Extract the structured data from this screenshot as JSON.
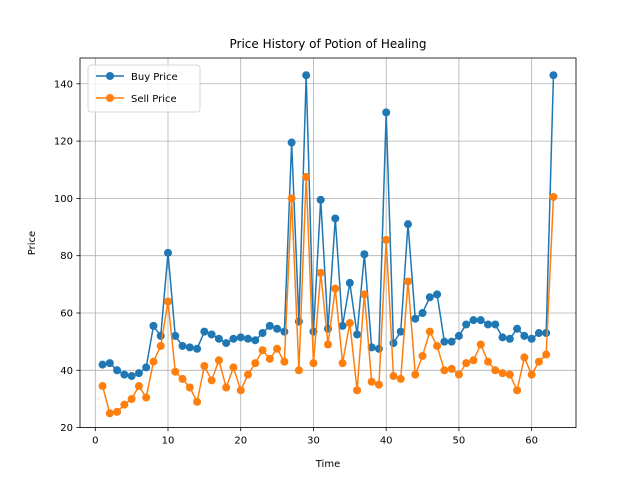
{
  "chart_data": {
    "type": "line",
    "title": "Price History of Potion of Healing",
    "xlabel": "Time",
    "ylabel": "Price",
    "xlim": [
      -2.1,
      66.1
    ],
    "ylim": [
      20,
      149
    ],
    "xticks": [
      0,
      10,
      20,
      30,
      40,
      50,
      60
    ],
    "yticks": [
      20,
      40,
      60,
      80,
      100,
      120,
      140
    ],
    "grid": true,
    "legend": "top-left",
    "x": [
      1,
      2,
      3,
      4,
      5,
      6,
      7,
      8,
      9,
      10,
      11,
      12,
      13,
      14,
      15,
      16,
      17,
      18,
      19,
      20,
      21,
      22,
      23,
      24,
      25,
      26,
      27,
      28,
      29,
      30,
      31,
      32,
      33,
      34,
      35,
      36,
      37,
      38,
      39,
      40,
      41,
      42,
      43,
      44,
      45,
      46,
      47,
      48,
      49,
      50,
      51,
      52,
      53,
      54,
      55,
      56,
      57,
      58,
      59,
      60,
      61,
      62,
      63
    ],
    "series": [
      {
        "name": "Buy Price",
        "color": "#1f77b4",
        "values": [
          42,
          42.5,
          40,
          38.5,
          38,
          39,
          41,
          55.5,
          52,
          81,
          52,
          48.5,
          48,
          47.5,
          53.5,
          52.5,
          51,
          49.5,
          51,
          51.5,
          51,
          50.5,
          53,
          55.5,
          54.5,
          53.5,
          119.5,
          57,
          143,
          53.5,
          99.5,
          54.5,
          93,
          55.5,
          70.5,
          52.5,
          80.5,
          48,
          47.5,
          130,
          49.5,
          53.5,
          91,
          58,
          60,
          65.5,
          66.5,
          50,
          50,
          52,
          56,
          57.5,
          57.5,
          56,
          56,
          51.5,
          51,
          54.5,
          52,
          51,
          53,
          53,
          143
        ]
      },
      {
        "name": "Sell Price",
        "color": "#ff7f0e",
        "values": [
          34.5,
          25,
          25.5,
          28,
          30,
          34.5,
          30.5,
          43,
          48.5,
          64,
          39.5,
          37,
          34,
          29,
          41.5,
          36.5,
          43.5,
          34,
          41,
          33,
          38.5,
          42.5,
          47,
          44,
          47.5,
          43,
          100,
          40,
          107.5,
          42.5,
          74,
          49,
          68.5,
          42.5,
          56.5,
          33,
          66.5,
          36,
          35,
          85.5,
          38,
          37,
          71,
          38.5,
          45,
          53.5,
          48.5,
          40,
          40.5,
          38.5,
          42.5,
          43.5,
          49,
          43,
          40,
          39,
          38.5,
          33,
          44.5,
          38.5,
          43,
          45.5,
          100.5
        ]
      }
    ]
  }
}
